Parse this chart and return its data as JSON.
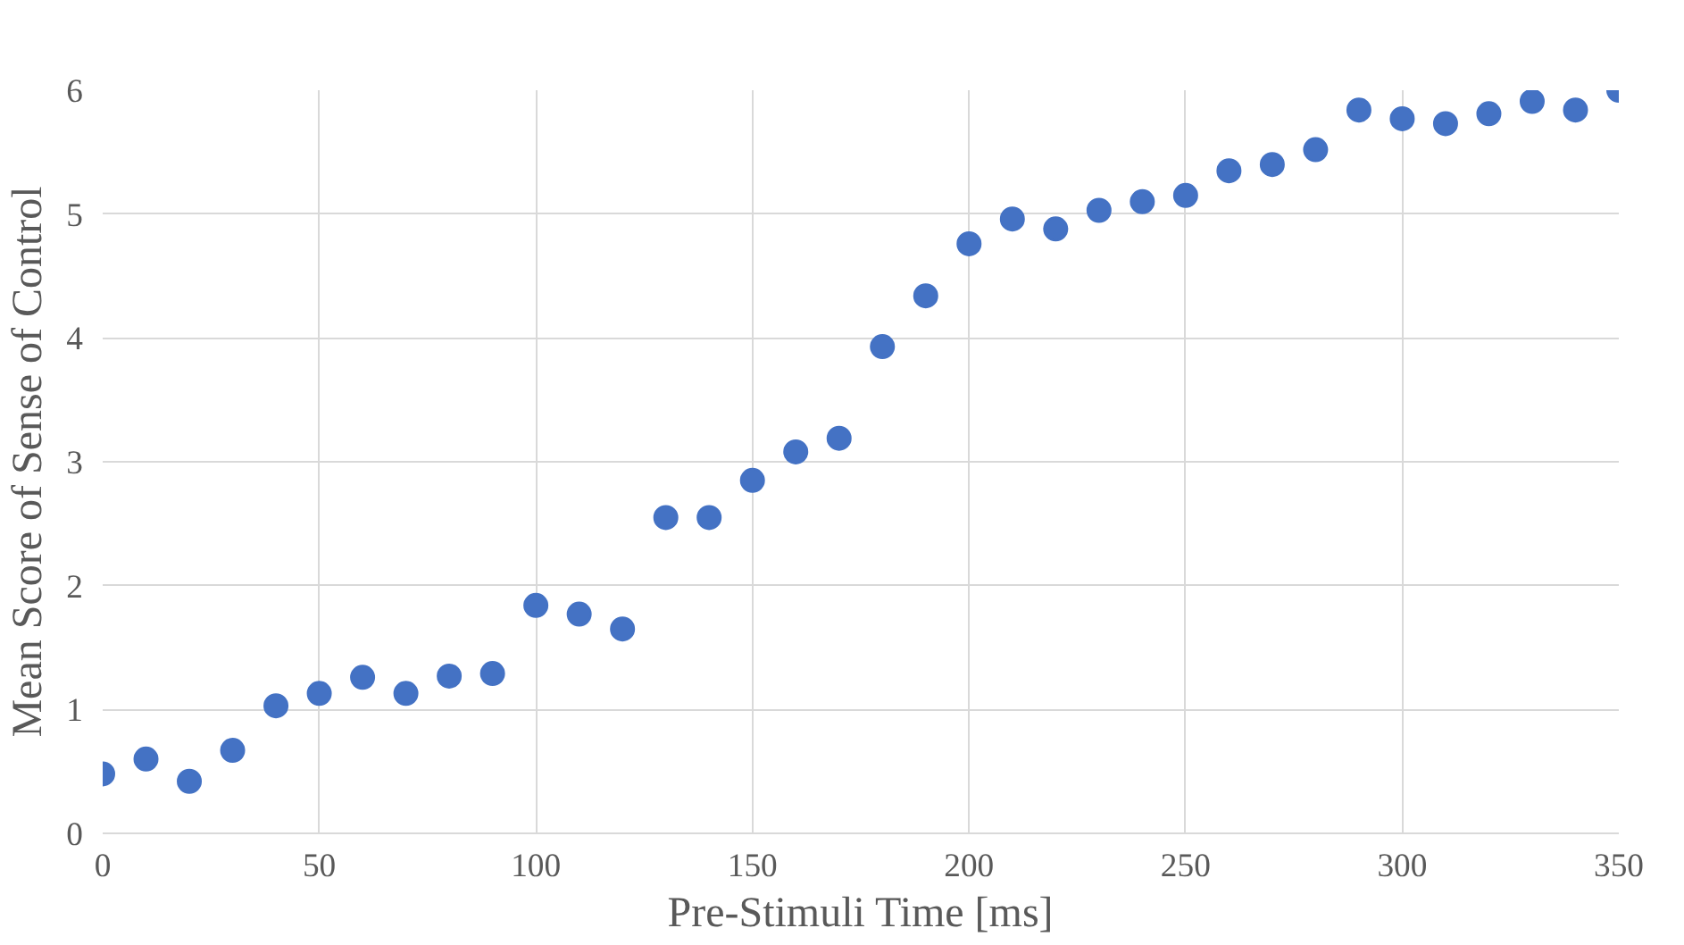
{
  "chart_data": {
    "type": "scatter",
    "xlabel": "Pre-Stimuli Time [ms]",
    "ylabel": "Mean Score of Sense of Control",
    "x": [
      0,
      10,
      20,
      30,
      40,
      50,
      60,
      70,
      80,
      90,
      100,
      110,
      120,
      130,
      140,
      150,
      160,
      170,
      180,
      190,
      200,
      210,
      220,
      230,
      240,
      250,
      260,
      270,
      280,
      290,
      300,
      310,
      320,
      330,
      340,
      350
    ],
    "series": [
      {
        "color": "#4472c4",
        "values": [
          0.48,
          0.6,
          0.42,
          0.67,
          1.03,
          1.13,
          1.26,
          1.13,
          1.27,
          1.29,
          1.84,
          1.77,
          1.65,
          2.55,
          2.55,
          2.85,
          3.08,
          3.19,
          3.93,
          4.34,
          4.76,
          4.96,
          4.88,
          5.03,
          5.1,
          5.15,
          5.35,
          5.4,
          5.52,
          5.84,
          5.77,
          5.73,
          5.81,
          5.91,
          5.84,
          6.0
        ]
      }
    ],
    "xlim": [
      0,
      350
    ],
    "xticks": [
      0,
      50,
      100,
      150,
      200,
      250,
      300,
      350
    ],
    "ylim": [
      0,
      6
    ],
    "yticks": [
      0,
      1,
      2,
      3,
      4,
      5,
      6
    ],
    "grid": true,
    "marker": "circle"
  }
}
